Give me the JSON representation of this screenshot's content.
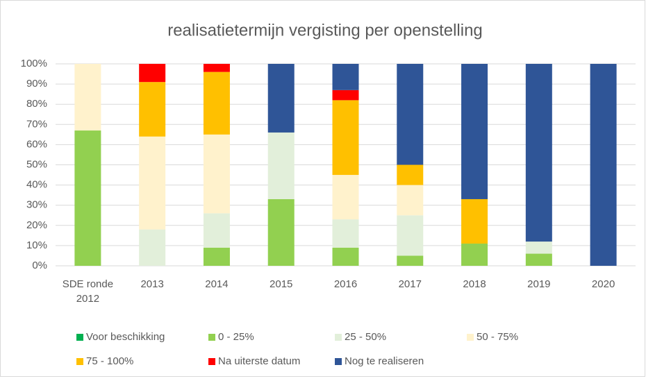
{
  "chart_data": {
    "type": "stacked_bar",
    "title": "realisatietermijn vergisting per openstelling",
    "categories": [
      "SDE ronde 2012",
      "2013",
      "2014",
      "2015",
      "2016",
      "2017",
      "2018",
      "2019",
      "2020"
    ],
    "series": [
      {
        "name": "Voor beschikking",
        "color": "#00b050",
        "values": [
          0,
          0,
          0,
          0,
          0,
          0,
          0,
          0,
          0
        ]
      },
      {
        "name": "0 - 25%",
        "color": "#92d050",
        "values": [
          67,
          0,
          9,
          33,
          9,
          5,
          11,
          6,
          0
        ]
      },
      {
        "name": "25 - 50%",
        "color": "#e2efda",
        "values": [
          0,
          18,
          17,
          33,
          14,
          20,
          0,
          6,
          0
        ]
      },
      {
        "name": "50 - 75%",
        "color": "#fff2cc",
        "values": [
          33,
          46,
          39,
          0,
          22,
          15,
          0,
          0,
          0
        ]
      },
      {
        "name": "75 - 100%",
        "color": "#ffc000",
        "values": [
          0,
          27,
          31,
          0,
          37,
          10,
          22,
          0,
          0
        ]
      },
      {
        "name": "Na uiterste datum",
        "color": "#ff0000",
        "values": [
          0,
          9,
          4,
          0,
          5,
          0,
          0,
          0,
          0
        ]
      },
      {
        "name": "Nog te realiseren",
        "color": "#2f5597",
        "values": [
          0,
          0,
          0,
          34,
          13,
          50,
          67,
          88,
          100
        ]
      }
    ],
    "ylim": [
      0,
      100
    ],
    "yticks": [
      {
        "value": 0,
        "label": "0%"
      },
      {
        "value": 10,
        "label": "10%"
      },
      {
        "value": 20,
        "label": "20%"
      },
      {
        "value": 30,
        "label": "30%"
      },
      {
        "value": 40,
        "label": "40%"
      },
      {
        "value": 50,
        "label": "50%"
      },
      {
        "value": 60,
        "label": "60%"
      },
      {
        "value": 70,
        "label": "70%"
      },
      {
        "value": 80,
        "label": "80%"
      },
      {
        "value": 90,
        "label": "90%"
      },
      {
        "value": 100,
        "label": "100%"
      }
    ],
    "grid": true,
    "legend": "bottom"
  }
}
